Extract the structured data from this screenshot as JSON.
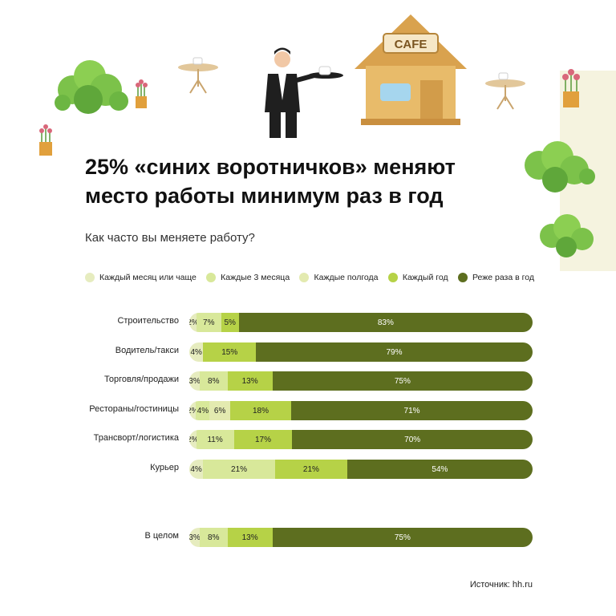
{
  "illustration": {
    "cafe_sign": "CAFE"
  },
  "title_line1": "25% «синих воротничков» меняют",
  "title_line2": "место работы минимум раз в год",
  "subtitle": "Как часто вы меняете работу?",
  "colors": [
    "#e6ecbf",
    "#d8e89a",
    "#e3eab0",
    "#b6d247",
    "#5d6e1f"
  ],
  "legend": [
    "Каждый месяц или чаще",
    "Каждые 3 месяца",
    "Каждые полгода",
    "Каждый год",
    "Реже раза в год"
  ],
  "chart_data": {
    "type": "bar",
    "orientation": "horizontal-stacked-100%",
    "categories": [
      "Строительство",
      "Водитель/такси",
      "Торговля/продажи",
      "Рестораны/гостиницы",
      "Трансворт/логистика",
      "Курьер",
      "В целом"
    ],
    "series": [
      {
        "name": "Каждый месяц или чаще",
        "values": [
          2,
          4,
          3,
          2,
          2,
          4,
          3
        ]
      },
      {
        "name": "Каждые 3 месяца",
        "values": [
          7,
          null,
          8,
          4,
          11,
          21,
          8
        ]
      },
      {
        "name": "Каждые полгода",
        "values": [
          null,
          null,
          null,
          6,
          null,
          null,
          null
        ]
      },
      {
        "name": "Каждый год",
        "values": [
          5,
          15,
          13,
          18,
          17,
          21,
          13
        ]
      },
      {
        "name": "Реже раза в год",
        "values": [
          83,
          79,
          75,
          71,
          70,
          54,
          75
        ]
      }
    ]
  },
  "source": "Источник: hh.ru"
}
